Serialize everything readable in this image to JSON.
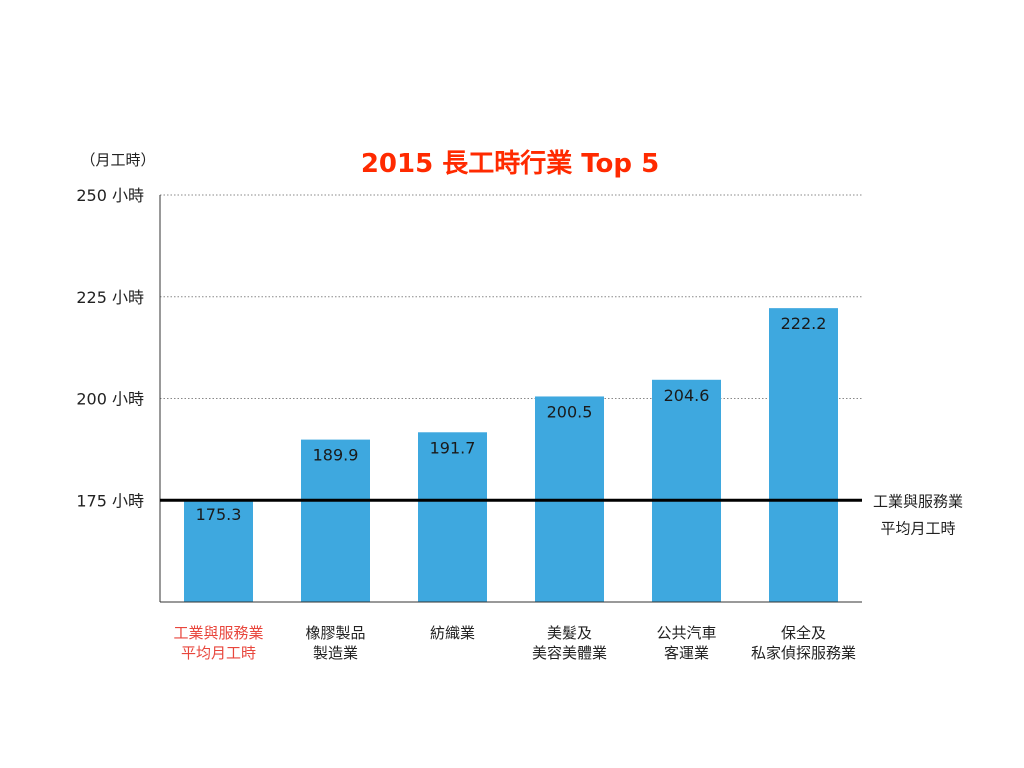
{
  "chart_data": {
    "type": "bar",
    "title": "2015 長工時行業 Top 5",
    "y_unit_label": "（月工時）",
    "categories": [
      [
        "工業與服務業",
        "平均月工時"
      ],
      [
        "橡膠製品",
        "製造業"
      ],
      [
        "紡織業"
      ],
      [
        "美髮及",
        "美容美體業"
      ],
      [
        "公共汽車",
        "客運業"
      ],
      [
        "保全及",
        "私家偵探服務業"
      ]
    ],
    "values": [
      175.3,
      189.9,
      191.7,
      200.5,
      204.6,
      222.2
    ],
    "value_labels": [
      "175.3",
      "189.9",
      "191.7",
      "200.5",
      "204.6",
      "222.2"
    ],
    "highlight_category_index": 0,
    "y_ticks": [
      175,
      200,
      225,
      250
    ],
    "y_tick_labels": [
      "175 小時",
      "200 小時",
      "225 小時",
      "250 小時"
    ],
    "ylim": [
      150,
      250
    ],
    "grid": true,
    "reference_line": {
      "value": 175,
      "label_lines": [
        "工業與服務業",
        "平均月工時"
      ]
    },
    "colors": {
      "bar": "#3ea8df",
      "title": "#ff2a00",
      "highlight_label": "#e8463c",
      "reference_line": "#000000",
      "grid": "#888888"
    }
  }
}
